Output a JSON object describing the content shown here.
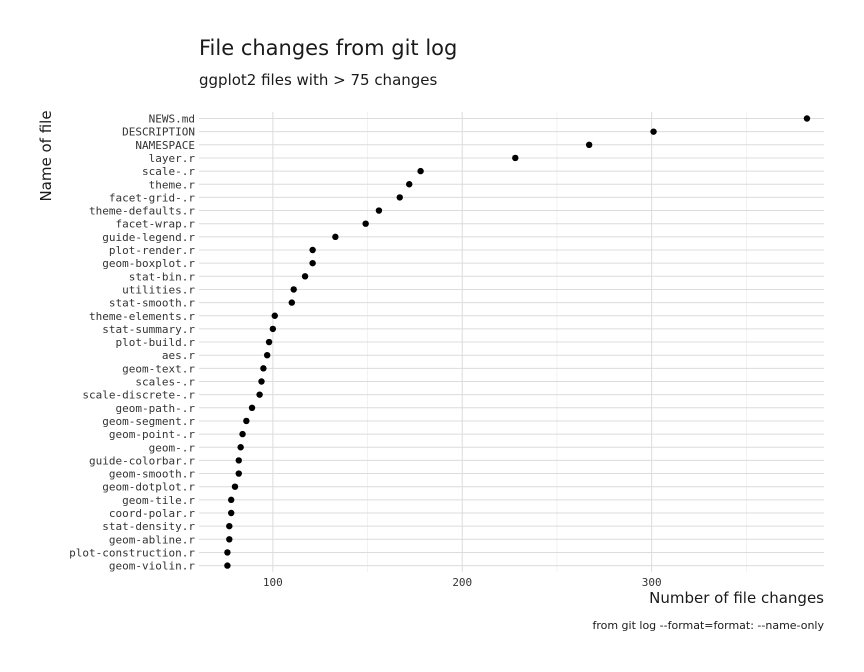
{
  "chart_data": {
    "type": "scatter",
    "title": "File changes from git log",
    "subtitle": "ggplot2 files with > 75 changes",
    "xlabel": "Number of file changes",
    "ylabel": "Name of file",
    "caption": "from git log --format=format: --name-only",
    "xlim": [
      61,
      391
    ],
    "x_ticks": [
      100,
      200,
      300
    ],
    "grid": true,
    "categories": [
      "NEWS.md",
      "DESCRIPTION",
      "NAMESPACE",
      "layer.r",
      "scale-.r",
      "theme.r",
      "facet-grid-.r",
      "theme-defaults.r",
      "facet-wrap.r",
      "guide-legend.r",
      "plot-render.r",
      "geom-boxplot.r",
      "stat-bin.r",
      "utilities.r",
      "stat-smooth.r",
      "theme-elements.r",
      "stat-summary.r",
      "plot-build.r",
      "aes.r",
      "geom-text.r",
      "scales-.r",
      "scale-discrete-.r",
      "geom-path-.r",
      "geom-segment.r",
      "geom-point-.r",
      "geom-.r",
      "guide-colorbar.r",
      "geom-smooth.r",
      "geom-dotplot.r",
      "geom-tile.r",
      "coord-polar.r",
      "stat-density.r",
      "geom-abline.r",
      "plot-construction.r",
      "geom-violin.r"
    ],
    "values": [
      382,
      301,
      267,
      228,
      178,
      172,
      167,
      156,
      149,
      133,
      121,
      121,
      117,
      111,
      110,
      101,
      100,
      98,
      97,
      95,
      94,
      93,
      89,
      86,
      84,
      83,
      82,
      82,
      80,
      78,
      78,
      77,
      77,
      76,
      76
    ]
  }
}
